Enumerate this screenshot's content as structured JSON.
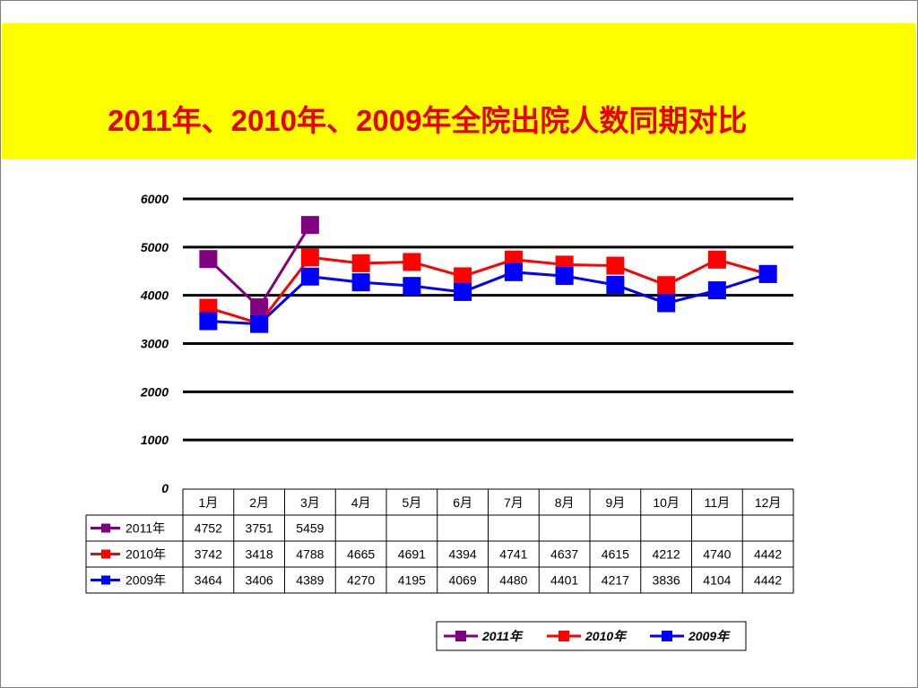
{
  "title": "2011年、2010年、2009年全院出院人数同期对比",
  "chart_data": {
    "type": "line",
    "title": "2011年、2010年、2009年全院出院人数同期对比",
    "categories": [
      "1月",
      "2月",
      "3月",
      "4月",
      "5月",
      "6月",
      "7月",
      "8月",
      "9月",
      "10月",
      "11月",
      "12月"
    ],
    "ylim": [
      0,
      6000
    ],
    "yticks": [
      "0",
      "1000",
      "2000",
      "3000",
      "4000",
      "5000",
      "6000"
    ],
    "grid": true,
    "legend_position": "bottom-right",
    "series": [
      {
        "name": "2011年",
        "color": "#800080",
        "values": [
          4752,
          3751,
          5459,
          null,
          null,
          null,
          null,
          null,
          null,
          null,
          null,
          null
        ]
      },
      {
        "name": "2010年",
        "color": "#ff0000",
        "values": [
          3742,
          3418,
          4788,
          4665,
          4691,
          4394,
          4741,
          4637,
          4615,
          4212,
          4740,
          4442
        ]
      },
      {
        "name": "2009年",
        "color": "#0000ff",
        "values": [
          3464,
          3406,
          4389,
          4270,
          4195,
          4069,
          4480,
          4401,
          4217,
          3836,
          4104,
          4442
        ]
      }
    ]
  }
}
